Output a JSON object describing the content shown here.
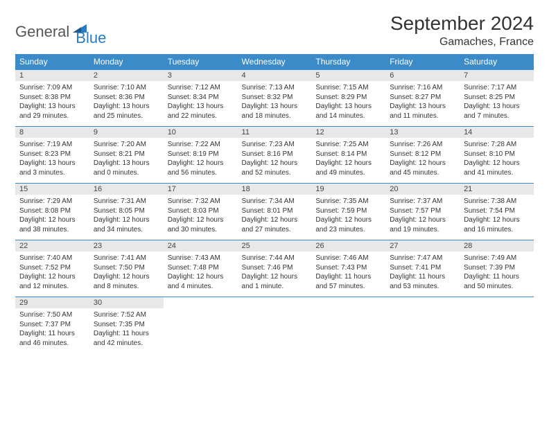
{
  "logo": {
    "general": "General",
    "blue": "Blue"
  },
  "title": "September 2024",
  "location": "Gamaches, France",
  "header_bg": "#3b8bc9",
  "daynum_bg": "#e8e8e8",
  "day_names": [
    "Sunday",
    "Monday",
    "Tuesday",
    "Wednesday",
    "Thursday",
    "Friday",
    "Saturday"
  ],
  "weeks": [
    [
      {
        "n": "1",
        "sunrise": "7:09 AM",
        "sunset": "8:38 PM",
        "daylight": "13 hours and 29 minutes."
      },
      {
        "n": "2",
        "sunrise": "7:10 AM",
        "sunset": "8:36 PM",
        "daylight": "13 hours and 25 minutes."
      },
      {
        "n": "3",
        "sunrise": "7:12 AM",
        "sunset": "8:34 PM",
        "daylight": "13 hours and 22 minutes."
      },
      {
        "n": "4",
        "sunrise": "7:13 AM",
        "sunset": "8:32 PM",
        "daylight": "13 hours and 18 minutes."
      },
      {
        "n": "5",
        "sunrise": "7:15 AM",
        "sunset": "8:29 PM",
        "daylight": "13 hours and 14 minutes."
      },
      {
        "n": "6",
        "sunrise": "7:16 AM",
        "sunset": "8:27 PM",
        "daylight": "13 hours and 11 minutes."
      },
      {
        "n": "7",
        "sunrise": "7:17 AM",
        "sunset": "8:25 PM",
        "daylight": "13 hours and 7 minutes."
      }
    ],
    [
      {
        "n": "8",
        "sunrise": "7:19 AM",
        "sunset": "8:23 PM",
        "daylight": "13 hours and 3 minutes."
      },
      {
        "n": "9",
        "sunrise": "7:20 AM",
        "sunset": "8:21 PM",
        "daylight": "13 hours and 0 minutes."
      },
      {
        "n": "10",
        "sunrise": "7:22 AM",
        "sunset": "8:19 PM",
        "daylight": "12 hours and 56 minutes."
      },
      {
        "n": "11",
        "sunrise": "7:23 AM",
        "sunset": "8:16 PM",
        "daylight": "12 hours and 52 minutes."
      },
      {
        "n": "12",
        "sunrise": "7:25 AM",
        "sunset": "8:14 PM",
        "daylight": "12 hours and 49 minutes."
      },
      {
        "n": "13",
        "sunrise": "7:26 AM",
        "sunset": "8:12 PM",
        "daylight": "12 hours and 45 minutes."
      },
      {
        "n": "14",
        "sunrise": "7:28 AM",
        "sunset": "8:10 PM",
        "daylight": "12 hours and 41 minutes."
      }
    ],
    [
      {
        "n": "15",
        "sunrise": "7:29 AM",
        "sunset": "8:08 PM",
        "daylight": "12 hours and 38 minutes."
      },
      {
        "n": "16",
        "sunrise": "7:31 AM",
        "sunset": "8:05 PM",
        "daylight": "12 hours and 34 minutes."
      },
      {
        "n": "17",
        "sunrise": "7:32 AM",
        "sunset": "8:03 PM",
        "daylight": "12 hours and 30 minutes."
      },
      {
        "n": "18",
        "sunrise": "7:34 AM",
        "sunset": "8:01 PM",
        "daylight": "12 hours and 27 minutes."
      },
      {
        "n": "19",
        "sunrise": "7:35 AM",
        "sunset": "7:59 PM",
        "daylight": "12 hours and 23 minutes."
      },
      {
        "n": "20",
        "sunrise": "7:37 AM",
        "sunset": "7:57 PM",
        "daylight": "12 hours and 19 minutes."
      },
      {
        "n": "21",
        "sunrise": "7:38 AM",
        "sunset": "7:54 PM",
        "daylight": "12 hours and 16 minutes."
      }
    ],
    [
      {
        "n": "22",
        "sunrise": "7:40 AM",
        "sunset": "7:52 PM",
        "daylight": "12 hours and 12 minutes."
      },
      {
        "n": "23",
        "sunrise": "7:41 AM",
        "sunset": "7:50 PM",
        "daylight": "12 hours and 8 minutes."
      },
      {
        "n": "24",
        "sunrise": "7:43 AM",
        "sunset": "7:48 PM",
        "daylight": "12 hours and 4 minutes."
      },
      {
        "n": "25",
        "sunrise": "7:44 AM",
        "sunset": "7:46 PM",
        "daylight": "12 hours and 1 minute."
      },
      {
        "n": "26",
        "sunrise": "7:46 AM",
        "sunset": "7:43 PM",
        "daylight": "11 hours and 57 minutes."
      },
      {
        "n": "27",
        "sunrise": "7:47 AM",
        "sunset": "7:41 PM",
        "daylight": "11 hours and 53 minutes."
      },
      {
        "n": "28",
        "sunrise": "7:49 AM",
        "sunset": "7:39 PM",
        "daylight": "11 hours and 50 minutes."
      }
    ],
    [
      {
        "n": "29",
        "sunrise": "7:50 AM",
        "sunset": "7:37 PM",
        "daylight": "11 hours and 46 minutes."
      },
      {
        "n": "30",
        "sunrise": "7:52 AM",
        "sunset": "7:35 PM",
        "daylight": "11 hours and 42 minutes."
      },
      null,
      null,
      null,
      null,
      null
    ]
  ],
  "labels": {
    "sunrise": "Sunrise:",
    "sunset": "Sunset:",
    "daylight": "Daylight:"
  }
}
